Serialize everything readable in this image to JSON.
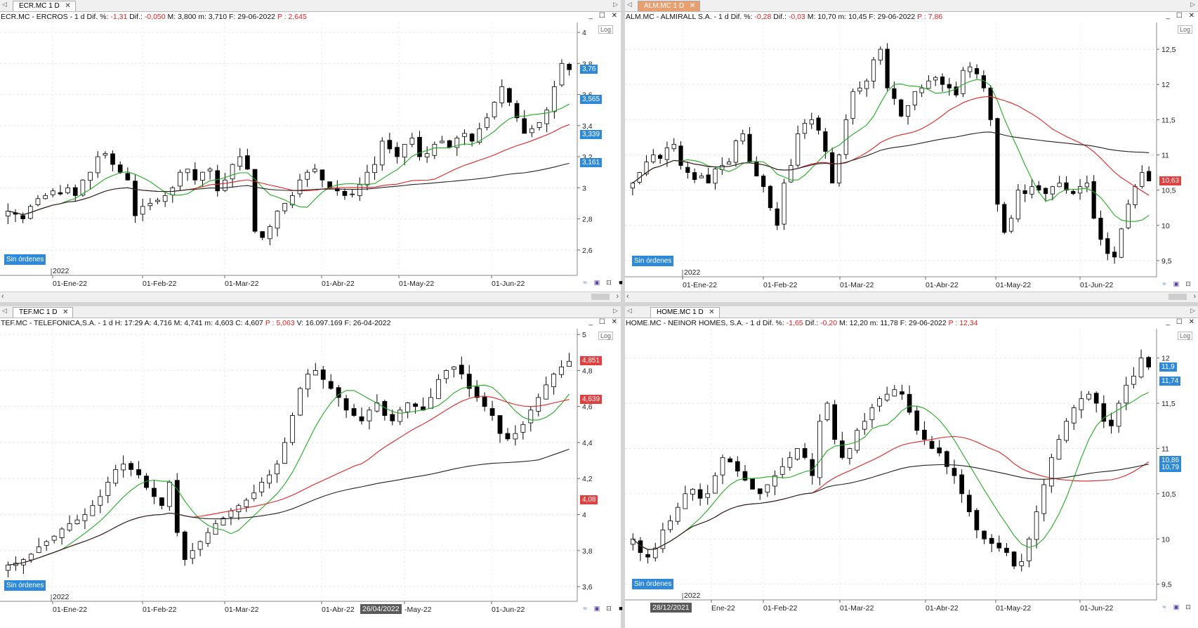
{
  "panes": [
    {
      "id": "ecr",
      "tab": "ECR.MC 1 D",
      "tab_active": false,
      "info": [
        {
          "t": "ECR.MC - ERCROS - 1 d  Dif. %: ",
          "c": ""
        },
        {
          "t": "-1,31",
          "c": "neg"
        },
        {
          "t": "  Dif.: ",
          "c": ""
        },
        {
          "t": "-0,050",
          "c": "neg"
        },
        {
          "t": "  M: 3,800  m: 3,710  F: 29-06-2022  ",
          "c": ""
        },
        {
          "t": "P : 2,645",
          "c": "neg"
        }
      ],
      "log_label": "Log",
      "orders_label": "Sin órdenes",
      "year_label": "2022",
      "date_labels": [
        "01-Ene-22",
        "01-Feb-22",
        "01-Mar-22",
        "01-Abr-22",
        "01-May-22",
        "01-Jun-22"
      ],
      "y_ticks": [
        "4",
        "3,8",
        "3,6",
        "3,4",
        "3,2",
        "3",
        "2,8",
        "2,6"
      ],
      "price_tags": [
        {
          "text": "3,76",
          "color": "#2e89d8"
        },
        {
          "text": "3,565",
          "color": "#2e89d8"
        },
        {
          "text": "3,339",
          "color": "#2e89d8"
        },
        {
          "text": "3,161",
          "color": "#2e89d8"
        }
      ],
      "cursor_label": ""
    },
    {
      "id": "alm",
      "tab": "ALM.MC 1 D",
      "tab_active": true,
      "info": [
        {
          "t": "ALM.MC - ALMIRALL S.A. -  1 d  Dif. %: ",
          "c": ""
        },
        {
          "t": "-0,28",
          "c": "neg"
        },
        {
          "t": "  Dif.: ",
          "c": ""
        },
        {
          "t": "-0,03",
          "c": "neg"
        },
        {
          "t": "  M: 10,70  m: 10,45  F: 29-06-2022  ",
          "c": ""
        },
        {
          "t": "P : 7,86",
          "c": "neg"
        }
      ],
      "log_label": "Log",
      "orders_label": "Sin órdenes",
      "year_label": "2022",
      "date_labels": [
        "01-Ene-22",
        "01-Feb-22",
        "01-Mar-22",
        "01-Abr-22",
        "01-May-22",
        "01-Jun-22"
      ],
      "y_ticks": [
        "12,5",
        "12",
        "11,5",
        "11",
        "10,5",
        "10",
        "9,5"
      ],
      "price_tags": [
        {
          "text": "10,63",
          "color": "#e04040"
        }
      ],
      "cursor_label": ""
    },
    {
      "id": "tef",
      "tab": "TEF.MC 1 D",
      "tab_active": false,
      "info": [
        {
          "t": "TEF.MC - TELEFONICA,S.A. -  1 d  H: 17:29  A: 4,716  M: 4,741  m: 4,603  C: 4,607  ",
          "c": ""
        },
        {
          "t": "P : 5,063",
          "c": "neg"
        },
        {
          "t": "  V: 16.097.169  F: 26-04-2022",
          "c": ""
        }
      ],
      "log_label": "Log",
      "orders_label": "Sin órdenes",
      "year_label": "2022",
      "date_labels": [
        "01-Ene-22",
        "01-Feb-22",
        "01-Mar-22",
        "01-Abr-22",
        "-May-22",
        "01-Jun-22"
      ],
      "y_ticks": [
        "5",
        "4,8",
        "4,6",
        "4,4",
        "4,2",
        "4",
        "3,8",
        "3,6"
      ],
      "price_tags": [
        {
          "text": "4,851",
          "color": "#e04040"
        },
        {
          "text": "4,639",
          "color": "#e04040"
        },
        {
          "text": "4,08",
          "color": "#e04040"
        }
      ],
      "cursor_label": "26/04/2022"
    },
    {
      "id": "home",
      "tab": "HOME.MC 1 D",
      "tab_active": false,
      "info": [
        {
          "t": "HOME.MC - NEINOR HOMES, S.A. -  1 d  Dif. %: ",
          "c": ""
        },
        {
          "t": "-1,65",
          "c": "neg"
        },
        {
          "t": "  Dif.: ",
          "c": ""
        },
        {
          "t": "-0,20",
          "c": "neg"
        },
        {
          "t": "  M: 12,20  m: 11,78  F: 29-06-2022  ",
          "c": ""
        },
        {
          "t": "P : 12,34",
          "c": "neg"
        }
      ],
      "log_label": "Log",
      "orders_label": "Sin órdenes",
      "year_label": "2022",
      "date_labels": [
        "Ene-22",
        "01-Feb-22",
        "01-Mar-22",
        "01-Abr-22",
        "01-May-22",
        "01-Jun-22"
      ],
      "y_ticks": [
        "12",
        "11,5",
        "11",
        "10,5",
        "10",
        "9,5"
      ],
      "price_tags": [
        {
          "text": "11,9",
          "color": "#2e89d8"
        },
        {
          "text": "11,74",
          "color": "#2e89d8"
        },
        {
          "text": "10,86",
          "color": "#2e89d8"
        },
        {
          "text": "10,79",
          "color": "#2e89d8"
        }
      ],
      "cursor_label": "28/12/2021"
    }
  ],
  "chart_data": [
    {
      "type": "candlestick",
      "symbol": "ECR.MC",
      "ylim": [
        2.45,
        4.05
      ],
      "x_start": "2021-12-27",
      "x_end": "2022-06-29",
      "closes": [
        2.85,
        2.83,
        2.8,
        2.88,
        2.93,
        2.95,
        2.98,
        2.96,
        3.0,
        2.95,
        3.05,
        3.1,
        3.2,
        3.22,
        3.15,
        3.1,
        3.05,
        2.82,
        2.88,
        2.9,
        2.92,
        2.95,
        3.0,
        3.1,
        3.12,
        3.05,
        3.1,
        3.12,
        2.98,
        3.05,
        3.15,
        3.2,
        3.12,
        2.72,
        2.68,
        2.75,
        2.85,
        2.9,
        2.95,
        3.05,
        3.1,
        3.12,
        3.05,
        3.0,
        2.98,
        2.95,
        2.96,
        3.02,
        3.1,
        3.15,
        3.3,
        3.25,
        3.2,
        3.28,
        3.32,
        3.2,
        3.22,
        3.28,
        3.3,
        3.26,
        3.32,
        3.35,
        3.3,
        3.38,
        3.45,
        3.55,
        3.65,
        3.55,
        3.45,
        3.35,
        3.38,
        3.42,
        3.5,
        3.65,
        3.8,
        3.76
      ]
    },
    {
      "type": "candlestick",
      "symbol": "ALM.MC",
      "ylim": [
        9.3,
        12.85
      ],
      "x_start": "2021-12-27",
      "x_end": "2022-06-29",
      "closes": [
        10.6,
        10.75,
        10.9,
        11.0,
        10.95,
        11.1,
        11.15,
        10.85,
        10.75,
        10.65,
        10.7,
        10.6,
        10.8,
        10.85,
        10.9,
        11.2,
        11.3,
        10.9,
        10.7,
        10.55,
        10.25,
        10.0,
        10.6,
        10.85,
        11.3,
        11.45,
        11.5,
        11.35,
        11.05,
        10.6,
        11.0,
        11.5,
        11.9,
        11.95,
        12.05,
        12.35,
        12.5,
        11.95,
        11.8,
        11.55,
        11.7,
        11.9,
        11.95,
        12.05,
        12.1,
        12.0,
        11.95,
        11.85,
        12.2,
        12.25,
        12.15,
        11.95,
        11.5,
        10.3,
        9.9,
        10.1,
        10.5,
        10.45,
        10.55,
        10.5,
        10.45,
        10.55,
        10.6,
        10.5,
        10.45,
        10.55,
        10.6,
        10.1,
        9.8,
        9.6,
        9.55,
        9.95,
        10.3,
        10.55,
        10.75,
        10.63
      ]
    },
    {
      "type": "candlestick",
      "symbol": "TEF.MC",
      "ylim": [
        3.53,
        5.02
      ],
      "x_start": "2021-12-27",
      "x_end": "2022-06-29",
      "closes": [
        3.72,
        3.73,
        3.75,
        3.78,
        3.82,
        3.85,
        3.88,
        3.92,
        3.95,
        3.97,
        4.0,
        4.05,
        4.1,
        4.18,
        4.25,
        4.28,
        4.25,
        4.22,
        4.15,
        4.1,
        4.05,
        4.18,
        3.9,
        3.75,
        3.8,
        3.85,
        3.9,
        3.95,
        3.98,
        4.02,
        4.05,
        4.08,
        4.12,
        4.18,
        4.22,
        4.28,
        4.4,
        4.55,
        4.7,
        4.78,
        4.8,
        4.75,
        4.7,
        4.65,
        4.58,
        4.55,
        4.52,
        4.58,
        4.62,
        4.55,
        4.52,
        4.58,
        4.62,
        4.6,
        4.58,
        4.65,
        4.75,
        4.8,
        4.82,
        4.78,
        4.7,
        4.65,
        4.6,
        4.55,
        4.45,
        4.42,
        4.45,
        4.5,
        4.58,
        4.65,
        4.72,
        4.78,
        4.82,
        4.851
      ]
    },
    {
      "type": "candlestick",
      "symbol": "HOME.MC",
      "ylim": [
        9.35,
        12.3
      ],
      "x_start": "2021-12-27",
      "x_end": "2022-06-29",
      "closes": [
        10.0,
        9.85,
        9.8,
        9.9,
        10.1,
        10.2,
        10.35,
        10.5,
        10.55,
        10.45,
        10.5,
        10.7,
        10.9,
        10.85,
        10.75,
        10.65,
        10.55,
        10.5,
        10.6,
        10.7,
        10.8,
        10.9,
        11.0,
        10.9,
        10.7,
        11.3,
        11.5,
        11.1,
        10.9,
        11.0,
        11.2,
        11.3,
        11.45,
        11.55,
        11.6,
        11.65,
        11.6,
        11.4,
        11.2,
        11.1,
        11.0,
        10.95,
        10.8,
        10.7,
        10.5,
        10.3,
        10.1,
        10.0,
        9.95,
        9.9,
        9.85,
        9.7,
        9.75,
        10.0,
        10.3,
        10.6,
        10.9,
        11.1,
        11.3,
        11.45,
        11.55,
        11.6,
        11.5,
        11.3,
        11.25,
        11.5,
        11.7,
        11.8,
        12.0,
        11.9
      ]
    }
  ]
}
